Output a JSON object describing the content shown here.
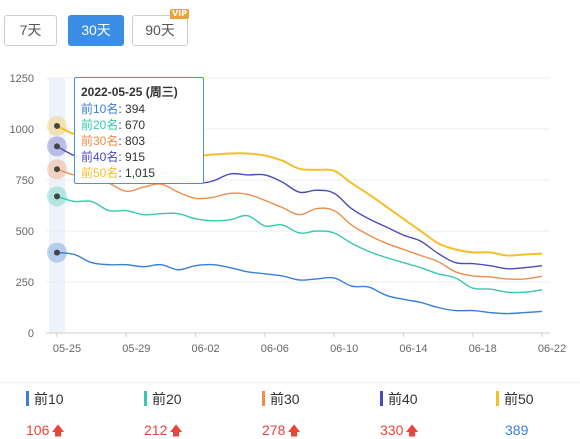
{
  "range_tabs": [
    {
      "label": "7天",
      "active": false
    },
    {
      "label": "30天",
      "active": true
    },
    {
      "label": "90天",
      "active": false,
      "badge": "VIP"
    }
  ],
  "tooltip": {
    "title": "2022-05-25 (周三)",
    "rows": [
      {
        "label": "前10名",
        "value": "394"
      },
      {
        "label": "前20名",
        "value": "670"
      },
      {
        "label": "前30名",
        "value": "803"
      },
      {
        "label": "前40名",
        "value": "915"
      },
      {
        "label": "前50名",
        "value": "1,015"
      }
    ]
  },
  "summary": [
    {
      "name": "前10",
      "value": "106",
      "trend": "up"
    },
    {
      "name": "前20",
      "value": "212",
      "trend": "up"
    },
    {
      "name": "前30",
      "value": "278",
      "trend": "up"
    },
    {
      "name": "前40",
      "value": "330",
      "trend": "up"
    },
    {
      "name": "前50",
      "value": "389",
      "trend": "none"
    }
  ],
  "colors": {
    "accent": "#3a8ee6",
    "up_arrow": "#e8453c",
    "highlight_band": "#eef2fa"
  },
  "chart_data": {
    "type": "line",
    "title": "",
    "xlabel": "",
    "ylabel": "",
    "ylim": [
      0,
      1250
    ],
    "yticks": [
      0,
      250,
      500,
      750,
      1000,
      1250
    ],
    "grid": true,
    "highlight_index": 0,
    "x": [
      "05-25",
      "05-26",
      "05-27",
      "05-28",
      "05-29",
      "05-30",
      "05-31",
      "06-01",
      "06-02",
      "06-03",
      "06-04",
      "06-05",
      "06-06",
      "06-07",
      "06-08",
      "06-09",
      "06-10",
      "06-11",
      "06-12",
      "06-13",
      "06-14",
      "06-15",
      "06-16",
      "06-17",
      "06-18",
      "06-19",
      "06-20",
      "06-21",
      "06-22"
    ],
    "xtick_labels": [
      "05-25",
      "05-29",
      "06-02",
      "06-06",
      "06-10",
      "06-14",
      "06-18",
      "06-22"
    ],
    "series": [
      {
        "name": "前10",
        "color": "#3a7fd5",
        "values": [
          394,
          385,
          345,
          335,
          335,
          325,
          335,
          310,
          330,
          335,
          320,
          300,
          290,
          280,
          260,
          265,
          270,
          230,
          225,
          185,
          165,
          150,
          125,
          110,
          110,
          100,
          95,
          100,
          106
        ]
      },
      {
        "name": "前20",
        "color": "#37c8b0",
        "values": [
          670,
          645,
          645,
          600,
          600,
          580,
          585,
          585,
          560,
          550,
          555,
          575,
          525,
          530,
          490,
          500,
          490,
          440,
          400,
          370,
          345,
          320,
          290,
          270,
          220,
          215,
          200,
          200,
          212
        ]
      },
      {
        "name": "前30",
        "color": "#ee8c4c",
        "values": [
          803,
          775,
          770,
          735,
          695,
          715,
          730,
          690,
          660,
          665,
          685,
          680,
          650,
          615,
          580,
          610,
          600,
          530,
          480,
          440,
          410,
          380,
          350,
          300,
          280,
          275,
          265,
          265,
          278
        ]
      },
      {
        "name": "前40",
        "color": "#4b4bb8",
        "values": [
          915,
          870,
          855,
          805,
          810,
          800,
          790,
          760,
          735,
          745,
          780,
          775,
          775,
          740,
          690,
          700,
          685,
          610,
          560,
          520,
          480,
          450,
          390,
          345,
          340,
          330,
          315,
          320,
          330
        ]
      },
      {
        "name": "前50",
        "color": "#f5bf2a",
        "values": [
          1015,
          975,
          960,
          925,
          930,
          925,
          935,
          895,
          870,
          875,
          880,
          880,
          870,
          845,
          805,
          800,
          795,
          735,
          680,
          620,
          560,
          500,
          440,
          410,
          395,
          395,
          380,
          385,
          389
        ]
      }
    ]
  }
}
